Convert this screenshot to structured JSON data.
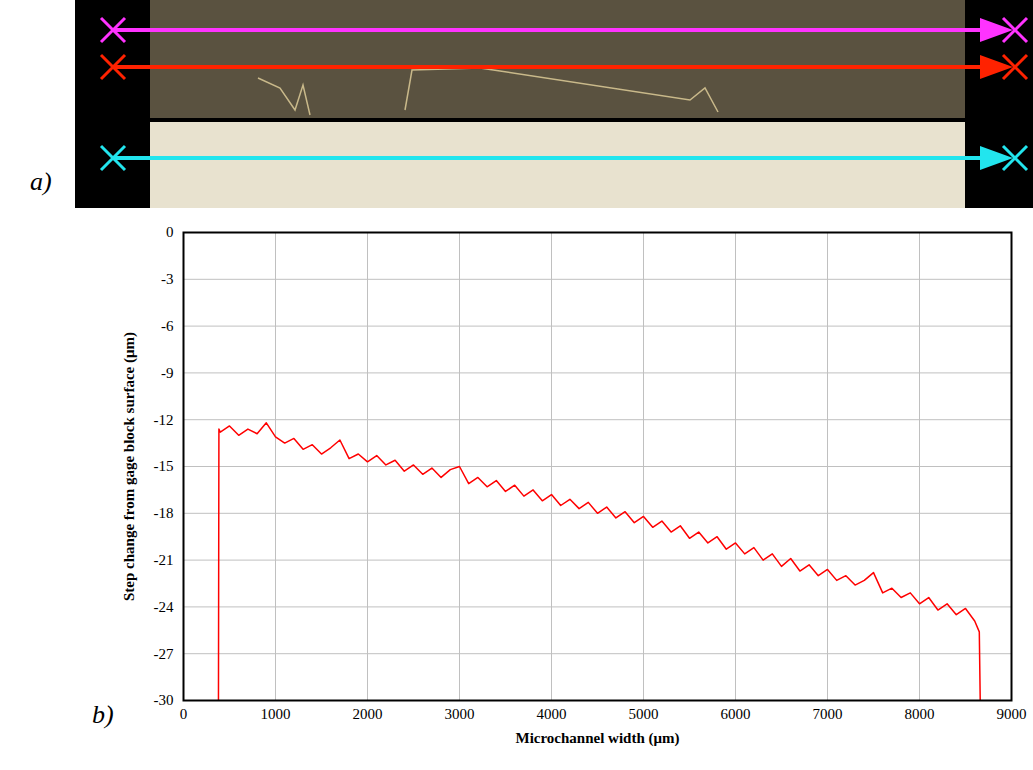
{
  "panel_labels": [
    "a)",
    "b)"
  ],
  "chart_data": {
    "type": "line",
    "x_label": "Microchannel width (μm)",
    "y_label": "Step change from gage block surface (μm)",
    "xlim": [
      0,
      9000
    ],
    "xticks": [
      0,
      1000,
      2000,
      3000,
      4000,
      5000,
      6000,
      7000,
      8000,
      9000
    ],
    "ylim": [
      -30,
      0
    ],
    "yticks": [
      0,
      -3,
      -6,
      -9,
      -12,
      -15,
      -18,
      -21,
      -24,
      -27,
      -30
    ],
    "grid": true,
    "color": "#ff0000",
    "x": [
      380,
      385,
      400,
      500,
      600,
      700,
      800,
      900,
      1000,
      1100,
      1200,
      1300,
      1400,
      1500,
      1600,
      1700,
      1800,
      1900,
      2000,
      2100,
      2200,
      2300,
      2400,
      2500,
      2600,
      2700,
      2800,
      2900,
      3000,
      3100,
      3200,
      3300,
      3400,
      3500,
      3600,
      3700,
      3800,
      3900,
      4000,
      4100,
      4200,
      4300,
      4400,
      4500,
      4600,
      4700,
      4800,
      4900,
      5000,
      5100,
      5200,
      5300,
      5400,
      5500,
      5600,
      5700,
      5800,
      5900,
      6000,
      6100,
      6200,
      6300,
      6400,
      6500,
      6600,
      6700,
      6800,
      6900,
      7000,
      7100,
      7200,
      7300,
      7400,
      7500,
      7600,
      7700,
      7800,
      7900,
      8000,
      8100,
      8200,
      8300,
      8400,
      8500,
      8600,
      8650,
      8660
    ],
    "values": [
      -30,
      -12.6,
      -12.8,
      -12.4,
      -13.0,
      -12.6,
      -12.9,
      -12.2,
      -13.1,
      -13.5,
      -13.2,
      -13.9,
      -13.6,
      -14.2,
      -13.8,
      -13.3,
      -14.5,
      -14.2,
      -14.7,
      -14.3,
      -14.9,
      -14.6,
      -15.3,
      -14.9,
      -15.5,
      -15.1,
      -15.7,
      -15.2,
      -15.0,
      -16.1,
      -15.7,
      -16.3,
      -15.9,
      -16.6,
      -16.2,
      -16.9,
      -16.5,
      -17.2,
      -16.8,
      -17.5,
      -17.1,
      -17.7,
      -17.3,
      -18.0,
      -17.6,
      -18.3,
      -17.9,
      -18.6,
      -18.2,
      -18.9,
      -18.5,
      -19.2,
      -18.8,
      -19.6,
      -19.2,
      -19.9,
      -19.5,
      -20.3,
      -19.9,
      -20.6,
      -20.2,
      -21.0,
      -20.6,
      -21.4,
      -20.9,
      -21.7,
      -21.3,
      -22.0,
      -21.6,
      -22.3,
      -22.0,
      -22.6,
      -22.3,
      -21.8,
      -23.1,
      -22.8,
      -23.4,
      -23.1,
      -23.8,
      -23.4,
      -24.2,
      -23.8,
      -24.5,
      -24.1,
      -24.9,
      -25.6,
      -30
    ]
  }
}
